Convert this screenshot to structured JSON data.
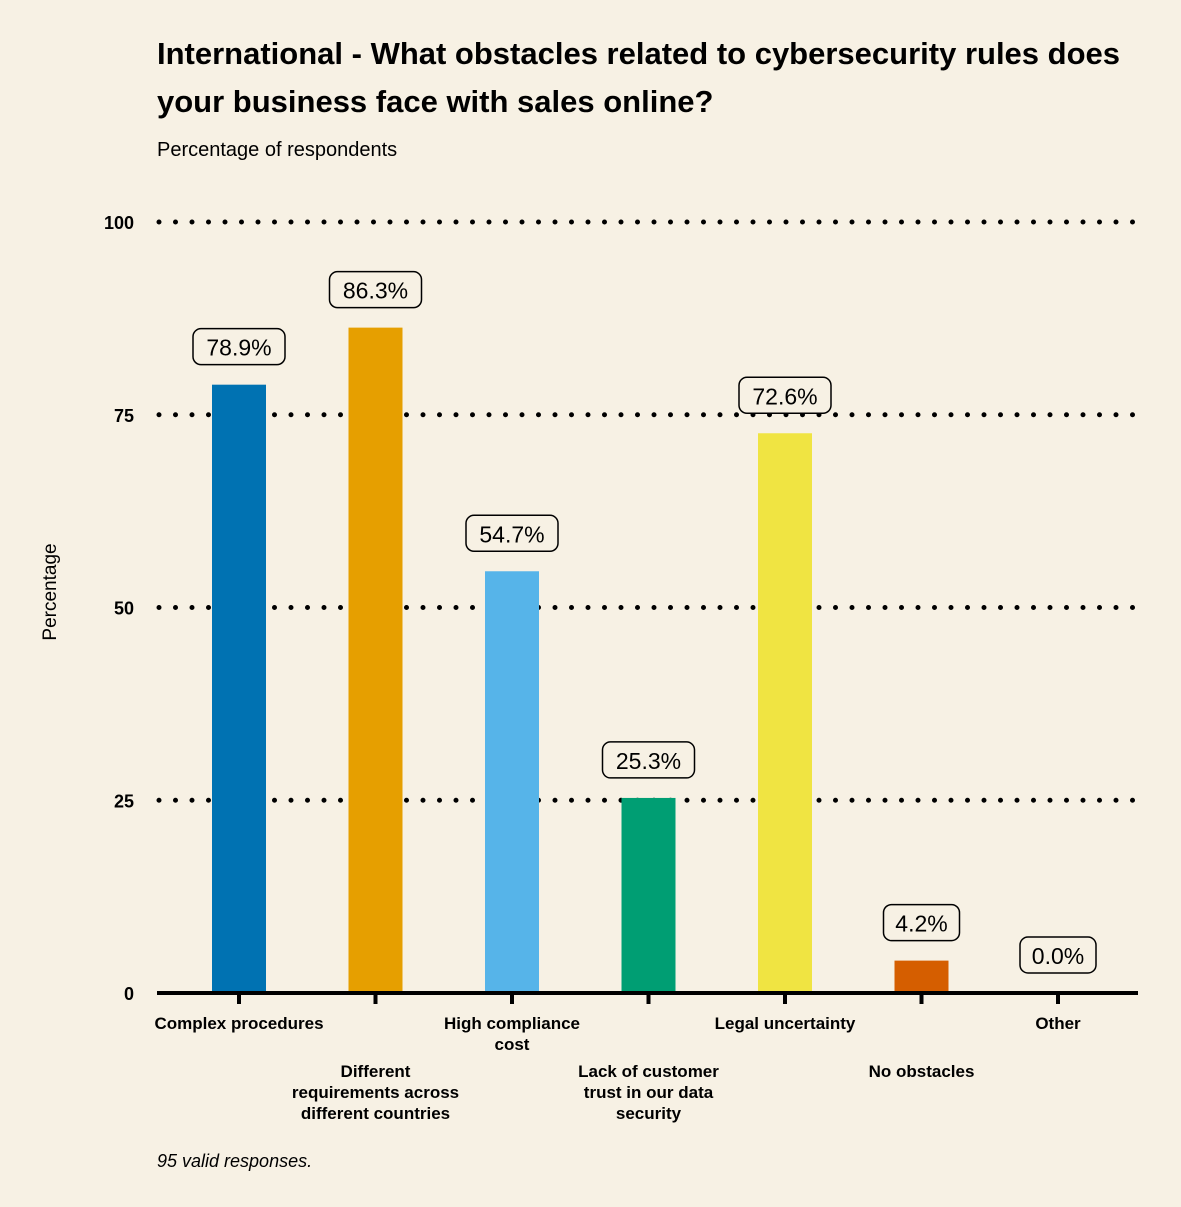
{
  "title": "International - What obstacles related to cybersecurity rules does your business face with sales online?",
  "subtitle": "Percentage of respondents",
  "footnote": "95 valid responses.",
  "chart_data": {
    "type": "bar",
    "ylabel": "Percentage",
    "ylim": [
      0,
      100
    ],
    "yticks": [
      0,
      25,
      50,
      75,
      100
    ],
    "grid": "horizontal dotted",
    "categories": [
      "Complex procedures",
      "Different requirements across different countries",
      "High compliance cost",
      "Lack of customer trust in our data security",
      "Legal uncertainty",
      "No obstacles",
      "Other"
    ],
    "category_lines": [
      [
        "Complex procedures"
      ],
      [
        "Different",
        "requirements across",
        "different countries"
      ],
      [
        "High compliance",
        "cost"
      ],
      [
        "Lack of customer",
        "trust in our data",
        "security"
      ],
      [
        "Legal uncertainty"
      ],
      [
        "No obstacles"
      ],
      [
        "Other"
      ]
    ],
    "values": [
      78.9,
      86.3,
      54.7,
      25.3,
      72.6,
      4.2,
      0.0
    ],
    "data_labels": [
      "78.9%",
      "86.3%",
      "54.7%",
      "25.3%",
      "72.6%",
      "4.2%",
      "0.0%"
    ],
    "colors": [
      "#0072b2",
      "#e69f00",
      "#56b4e9",
      "#009e73",
      "#f0e442",
      "#d55e00",
      "#cc79a7"
    ]
  }
}
